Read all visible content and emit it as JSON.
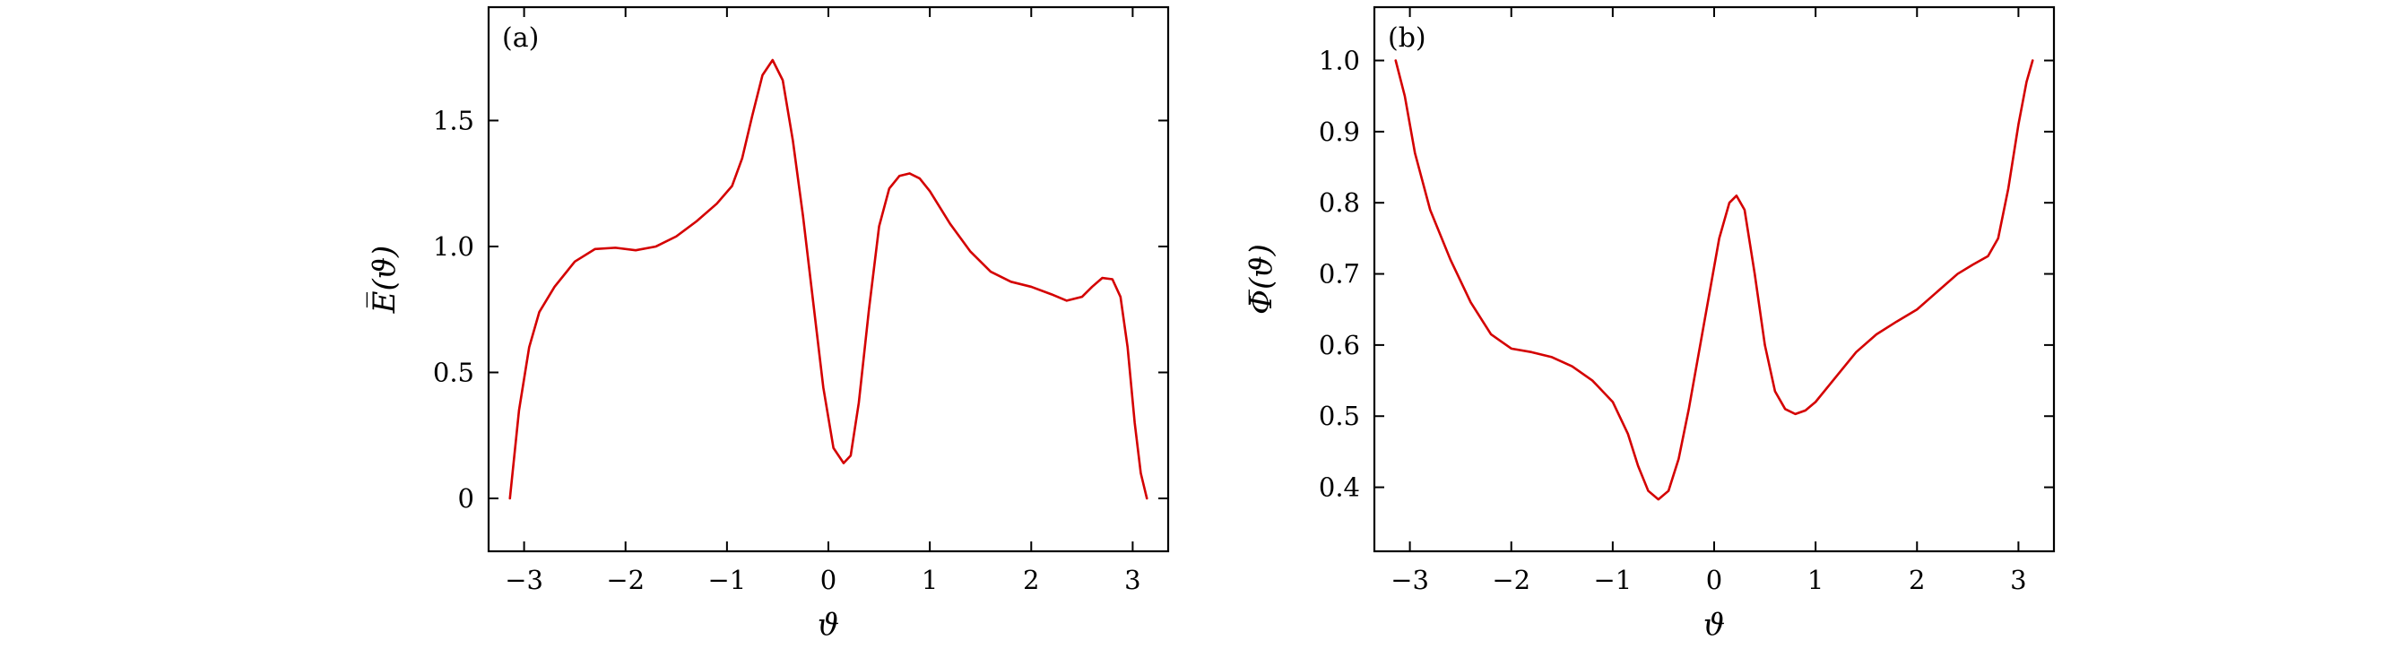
{
  "chart_data": [
    {
      "type": "line",
      "panel_label": "(a)",
      "xlabel": "ϑ",
      "ylabel": "E̅(ϑ)",
      "xlim": [
        -3.35,
        3.35
      ],
      "ylim": [
        -0.21,
        1.95
      ],
      "xticks": [
        -3,
        -2,
        -1,
        0,
        1,
        2,
        3
      ],
      "xtick_labels": [
        "−3",
        "−2",
        "−1",
        "0",
        "1",
        "2",
        "3"
      ],
      "yticks": [
        0,
        0.5,
        1.0,
        1.5
      ],
      "ytick_labels": [
        "0",
        "0.5",
        "1.0",
        "1.5"
      ],
      "color": "#d40000",
      "grid": false,
      "series": [
        {
          "x": [
            -3.14,
            -3.05,
            -2.95,
            -2.85,
            -2.7,
            -2.5,
            -2.3,
            -2.1,
            -1.9,
            -1.7,
            -1.5,
            -1.3,
            -1.1,
            -0.95,
            -0.85,
            -0.75,
            -0.65,
            -0.55,
            -0.45,
            -0.35,
            -0.25,
            -0.15,
            -0.05,
            0.05,
            0.15,
            0.22,
            0.3,
            0.4,
            0.5,
            0.6,
            0.7,
            0.8,
            0.9,
            1.0,
            1.2,
            1.4,
            1.6,
            1.8,
            2.0,
            2.2,
            2.35,
            2.5,
            2.6,
            2.7,
            2.8,
            2.88,
            2.95,
            3.02,
            3.08,
            3.14
          ],
          "y": [
            0,
            0.35,
            0.6,
            0.74,
            0.84,
            0.94,
            0.99,
            0.995,
            0.985,
            1.0,
            1.04,
            1.1,
            1.17,
            1.24,
            1.35,
            1.52,
            1.68,
            1.74,
            1.66,
            1.42,
            1.12,
            0.78,
            0.44,
            0.2,
            0.14,
            0.17,
            0.38,
            0.75,
            1.08,
            1.23,
            1.28,
            1.29,
            1.27,
            1.22,
            1.09,
            0.98,
            0.9,
            0.86,
            0.84,
            0.81,
            0.785,
            0.8,
            0.84,
            0.875,
            0.87,
            0.8,
            0.6,
            0.3,
            0.1,
            0
          ]
        }
      ]
    },
    {
      "type": "line",
      "panel_label": "(b)",
      "xlabel": "ϑ",
      "ylabel": "Φ̅(ϑ)",
      "xlim": [
        -3.35,
        3.35
      ],
      "ylim": [
        0.31,
        1.075
      ],
      "xticks": [
        -3,
        -2,
        -1,
        0,
        1,
        2,
        3
      ],
      "xtick_labels": [
        "−3",
        "−2",
        "−1",
        "0",
        "1",
        "2",
        "3"
      ],
      "yticks": [
        0.4,
        0.5,
        0.6,
        0.7,
        0.8,
        0.9,
        1.0
      ],
      "ytick_labels": [
        "0.4",
        "0.5",
        "0.6",
        "0.7",
        "0.8",
        "0.9",
        "1.0"
      ],
      "color": "#d40000",
      "grid": false,
      "series": [
        {
          "x": [
            -3.14,
            -3.05,
            -2.95,
            -2.8,
            -2.6,
            -2.4,
            -2.2,
            -2.0,
            -1.8,
            -1.6,
            -1.4,
            -1.2,
            -1.0,
            -0.85,
            -0.75,
            -0.65,
            -0.55,
            -0.45,
            -0.35,
            -0.25,
            -0.15,
            -0.05,
            0.05,
            0.15,
            0.22,
            0.3,
            0.4,
            0.5,
            0.6,
            0.7,
            0.8,
            0.9,
            1.0,
            1.2,
            1.4,
            1.6,
            1.8,
            2.0,
            2.2,
            2.4,
            2.55,
            2.7,
            2.8,
            2.9,
            3.0,
            3.08,
            3.14
          ],
          "y": [
            1.0,
            0.95,
            0.87,
            0.79,
            0.72,
            0.66,
            0.615,
            0.595,
            0.59,
            0.583,
            0.57,
            0.55,
            0.52,
            0.475,
            0.43,
            0.395,
            0.383,
            0.395,
            0.44,
            0.51,
            0.59,
            0.67,
            0.75,
            0.8,
            0.81,
            0.79,
            0.7,
            0.6,
            0.535,
            0.51,
            0.503,
            0.508,
            0.52,
            0.555,
            0.59,
            0.615,
            0.633,
            0.65,
            0.675,
            0.7,
            0.713,
            0.725,
            0.75,
            0.82,
            0.91,
            0.97,
            1.0
          ]
        }
      ]
    }
  ]
}
